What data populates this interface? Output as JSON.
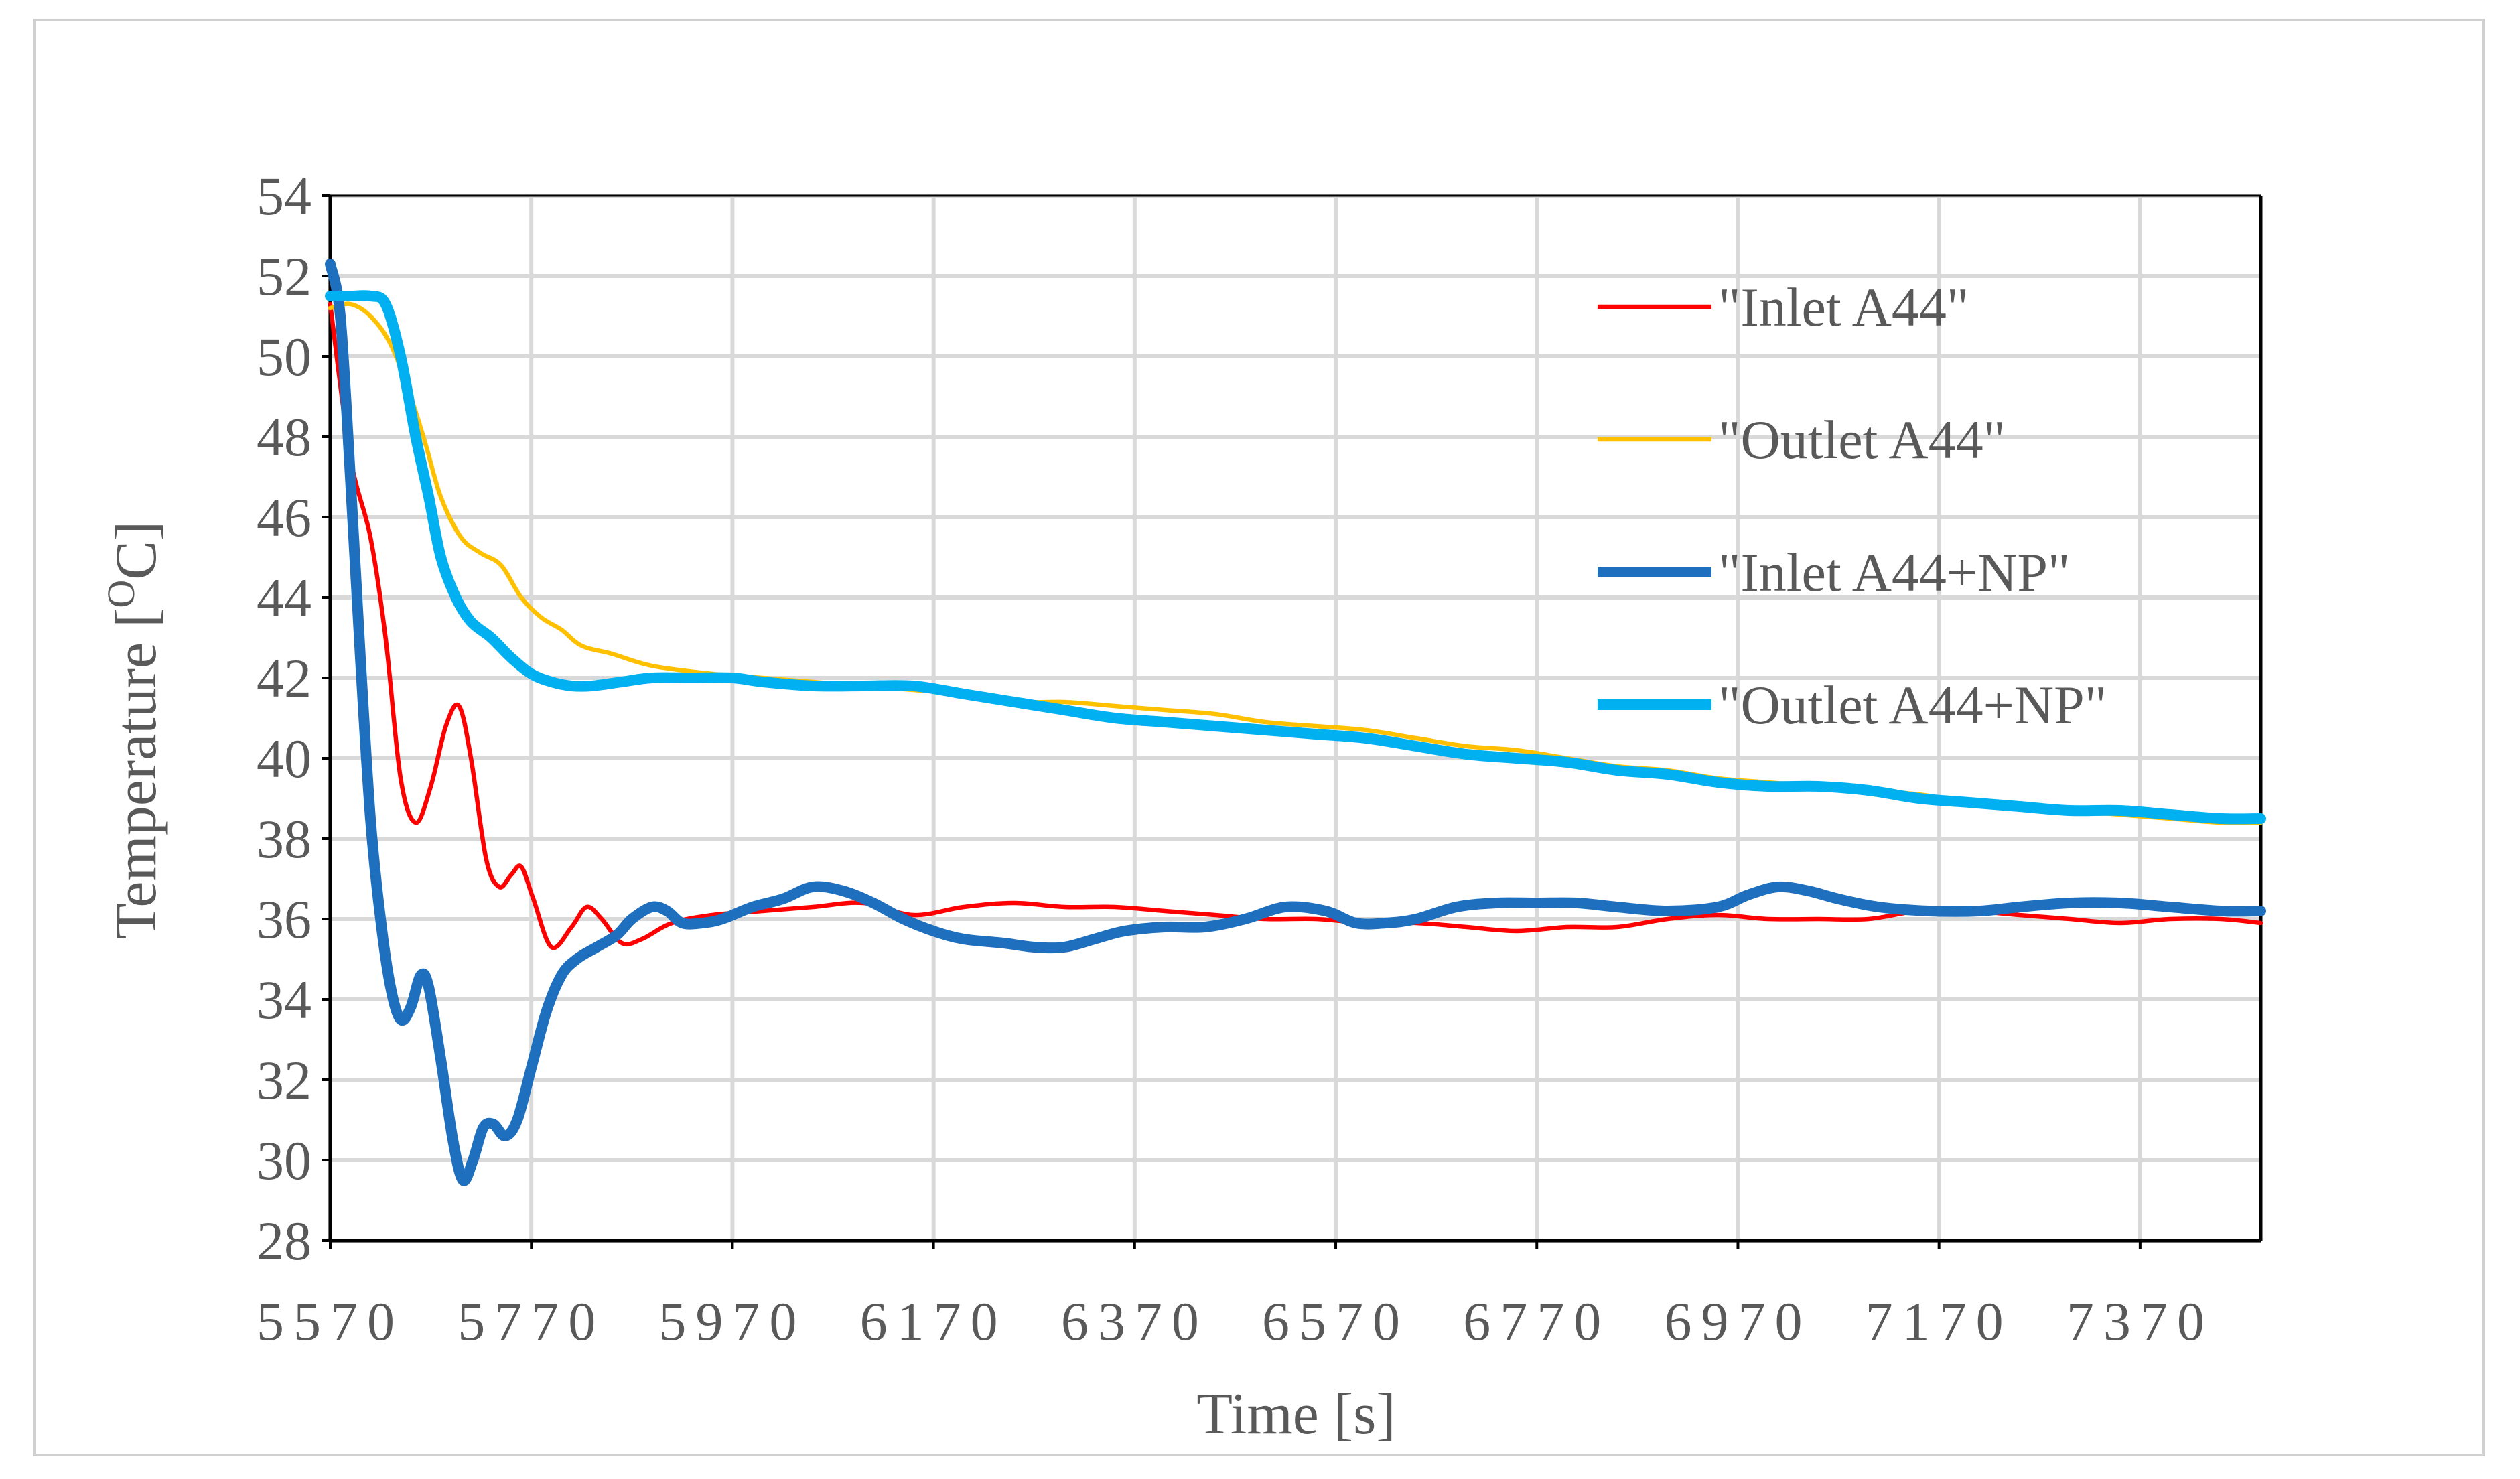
{
  "chart_data": {
    "type": "line",
    "title": "",
    "xlabel": "Time [s]",
    "ylabel_text": "Temperature [",
    "ylabel_sup": "O",
    "ylabel_end": "C]",
    "xlim": [
      5570,
      7490
    ],
    "ylim": [
      28,
      54
    ],
    "xticks": [
      5570,
      5770,
      5970,
      6170,
      6370,
      6570,
      6770,
      6970,
      7170,
      7370
    ],
    "yticks": [
      28,
      30,
      32,
      34,
      36,
      38,
      40,
      42,
      44,
      46,
      48,
      50,
      52,
      54
    ],
    "grid": true,
    "legend_position": "top-right",
    "series": [
      {
        "name": "\"Inlet A44\"",
        "color": "#ff0000",
        "width": "thin",
        "points": [
          [
            5570,
            51.3
          ],
          [
            5590,
            47.5
          ],
          [
            5610,
            45.5
          ],
          [
            5625,
            43.0
          ],
          [
            5640,
            39.5
          ],
          [
            5655,
            38.4
          ],
          [
            5670,
            39.3
          ],
          [
            5685,
            40.8
          ],
          [
            5698,
            41.3
          ],
          [
            5710,
            40.0
          ],
          [
            5725,
            37.5
          ],
          [
            5738,
            36.8
          ],
          [
            5750,
            37.1
          ],
          [
            5760,
            37.3
          ],
          [
            5772,
            36.5
          ],
          [
            5790,
            35.3
          ],
          [
            5810,
            35.8
          ],
          [
            5825,
            36.3
          ],
          [
            5840,
            36.0
          ],
          [
            5860,
            35.4
          ],
          [
            5880,
            35.5
          ],
          [
            5910,
            35.9
          ],
          [
            5950,
            36.1
          ],
          [
            6000,
            36.2
          ],
          [
            6050,
            36.3
          ],
          [
            6100,
            36.4
          ],
          [
            6150,
            36.1
          ],
          [
            6200,
            36.3
          ],
          [
            6250,
            36.4
          ],
          [
            6300,
            36.3
          ],
          [
            6350,
            36.3
          ],
          [
            6400,
            36.2
          ],
          [
            6450,
            36.1
          ],
          [
            6500,
            36.0
          ],
          [
            6550,
            36.0
          ],
          [
            6600,
            35.9
          ],
          [
            6650,
            35.9
          ],
          [
            6700,
            35.8
          ],
          [
            6750,
            35.7
          ],
          [
            6800,
            35.8
          ],
          [
            6850,
            35.8
          ],
          [
            6900,
            36.0
          ],
          [
            6950,
            36.1
          ],
          [
            7000,
            36.0
          ],
          [
            7050,
            36.0
          ],
          [
            7100,
            36.0
          ],
          [
            7150,
            36.2
          ],
          [
            7200,
            36.2
          ],
          [
            7250,
            36.1
          ],
          [
            7300,
            36.0
          ],
          [
            7350,
            35.9
          ],
          [
            7400,
            36.0
          ],
          [
            7450,
            36.0
          ],
          [
            7490,
            35.9
          ]
        ]
      },
      {
        "name": "\"Outlet A44\"",
        "color": "#ffc000",
        "width": "thin",
        "points": [
          [
            5570,
            51.2
          ],
          [
            5590,
            51.3
          ],
          [
            5610,
            51.0
          ],
          [
            5630,
            50.3
          ],
          [
            5650,
            49.0
          ],
          [
            5665,
            47.8
          ],
          [
            5680,
            46.5
          ],
          [
            5700,
            45.5
          ],
          [
            5720,
            45.1
          ],
          [
            5740,
            44.8
          ],
          [
            5760,
            44.0
          ],
          [
            5780,
            43.5
          ],
          [
            5800,
            43.2
          ],
          [
            5820,
            42.8
          ],
          [
            5850,
            42.6
          ],
          [
            5890,
            42.3
          ],
          [
            5950,
            42.1
          ],
          [
            6000,
            42.0
          ],
          [
            6050,
            41.9
          ],
          [
            6100,
            41.8
          ],
          [
            6150,
            41.7
          ],
          [
            6200,
            41.6
          ],
          [
            6250,
            41.4
          ],
          [
            6300,
            41.4
          ],
          [
            6350,
            41.3
          ],
          [
            6400,
            41.2
          ],
          [
            6450,
            41.1
          ],
          [
            6500,
            40.9
          ],
          [
            6550,
            40.8
          ],
          [
            6600,
            40.7
          ],
          [
            6650,
            40.5
          ],
          [
            6700,
            40.3
          ],
          [
            6750,
            40.2
          ],
          [
            6800,
            40.0
          ],
          [
            6850,
            39.8
          ],
          [
            6900,
            39.7
          ],
          [
            6950,
            39.5
          ],
          [
            7000,
            39.4
          ],
          [
            7050,
            39.3
          ],
          [
            7100,
            39.2
          ],
          [
            7150,
            39.1
          ],
          [
            7200,
            38.9
          ],
          [
            7250,
            38.8
          ],
          [
            7300,
            38.7
          ],
          [
            7350,
            38.6
          ],
          [
            7400,
            38.5
          ],
          [
            7450,
            38.4
          ],
          [
            7490,
            38.4
          ]
        ]
      },
      {
        "name": "\"Inlet A44+NP\"",
        "color": "#1f6fbf",
        "width": "thick",
        "points": [
          [
            5570,
            52.3
          ],
          [
            5580,
            51.0
          ],
          [
            5590,
            47.0
          ],
          [
            5600,
            42.5
          ],
          [
            5610,
            38.5
          ],
          [
            5620,
            36.0
          ],
          [
            5630,
            34.3
          ],
          [
            5640,
            33.5
          ],
          [
            5650,
            33.8
          ],
          [
            5660,
            34.6
          ],
          [
            5668,
            34.3
          ],
          [
            5680,
            32.5
          ],
          [
            5692,
            30.5
          ],
          [
            5702,
            29.5
          ],
          [
            5712,
            30.0
          ],
          [
            5722,
            30.8
          ],
          [
            5732,
            30.9
          ],
          [
            5744,
            30.6
          ],
          [
            5756,
            31.0
          ],
          [
            5770,
            32.3
          ],
          [
            5785,
            33.7
          ],
          [
            5800,
            34.6
          ],
          [
            5815,
            35.0
          ],
          [
            5835,
            35.3
          ],
          [
            5855,
            35.6
          ],
          [
            5870,
            36.0
          ],
          [
            5890,
            36.3
          ],
          [
            5905,
            36.2
          ],
          [
            5920,
            35.9
          ],
          [
            5940,
            35.9
          ],
          [
            5960,
            36.0
          ],
          [
            5990,
            36.3
          ],
          [
            6020,
            36.5
          ],
          [
            6050,
            36.8
          ],
          [
            6080,
            36.7
          ],
          [
            6110,
            36.4
          ],
          [
            6140,
            36.0
          ],
          [
            6170,
            35.7
          ],
          [
            6200,
            35.5
          ],
          [
            6240,
            35.4
          ],
          [
            6270,
            35.3
          ],
          [
            6300,
            35.3
          ],
          [
            6330,
            35.5
          ],
          [
            6360,
            35.7
          ],
          [
            6400,
            35.8
          ],
          [
            6440,
            35.8
          ],
          [
            6480,
            36.0
          ],
          [
            6520,
            36.3
          ],
          [
            6560,
            36.2
          ],
          [
            6590,
            35.9
          ],
          [
            6620,
            35.9
          ],
          [
            6650,
            36.0
          ],
          [
            6690,
            36.3
          ],
          [
            6730,
            36.4
          ],
          [
            6770,
            36.4
          ],
          [
            6810,
            36.4
          ],
          [
            6850,
            36.3
          ],
          [
            6900,
            36.2
          ],
          [
            6950,
            36.3
          ],
          [
            6980,
            36.6
          ],
          [
            7010,
            36.8
          ],
          [
            7040,
            36.7
          ],
          [
            7070,
            36.5
          ],
          [
            7110,
            36.3
          ],
          [
            7160,
            36.2
          ],
          [
            7210,
            36.2
          ],
          [
            7250,
            36.3
          ],
          [
            7300,
            36.4
          ],
          [
            7350,
            36.4
          ],
          [
            7400,
            36.3
          ],
          [
            7450,
            36.2
          ],
          [
            7490,
            36.2
          ]
        ]
      },
      {
        "name": "\"Outlet A44+NP\"",
        "color": "#00b0f0",
        "width": "thick",
        "points": [
          [
            5570,
            51.5
          ],
          [
            5590,
            51.5
          ],
          [
            5610,
            51.5
          ],
          [
            5625,
            51.3
          ],
          [
            5640,
            50.0
          ],
          [
            5655,
            48.0
          ],
          [
            5668,
            46.5
          ],
          [
            5680,
            45.0
          ],
          [
            5695,
            44.0
          ],
          [
            5710,
            43.4
          ],
          [
            5730,
            43.0
          ],
          [
            5750,
            42.5
          ],
          [
            5770,
            42.1
          ],
          [
            5790,
            41.9
          ],
          [
            5810,
            41.8
          ],
          [
            5830,
            41.8
          ],
          [
            5860,
            41.9
          ],
          [
            5890,
            42.0
          ],
          [
            5930,
            42.0
          ],
          [
            5970,
            42.0
          ],
          [
            6000,
            41.9
          ],
          [
            6050,
            41.8
          ],
          [
            6100,
            41.8
          ],
          [
            6150,
            41.8
          ],
          [
            6200,
            41.6
          ],
          [
            6250,
            41.4
          ],
          [
            6300,
            41.2
          ],
          [
            6350,
            41.0
          ],
          [
            6400,
            40.9
          ],
          [
            6450,
            40.8
          ],
          [
            6500,
            40.7
          ],
          [
            6550,
            40.6
          ],
          [
            6600,
            40.5
          ],
          [
            6650,
            40.3
          ],
          [
            6700,
            40.1
          ],
          [
            6750,
            40.0
          ],
          [
            6800,
            39.9
          ],
          [
            6850,
            39.7
          ],
          [
            6900,
            39.6
          ],
          [
            6950,
            39.4
          ],
          [
            7000,
            39.3
          ],
          [
            7050,
            39.3
          ],
          [
            7100,
            39.2
          ],
          [
            7150,
            39.0
          ],
          [
            7200,
            38.9
          ],
          [
            7250,
            38.8
          ],
          [
            7300,
            38.7
          ],
          [
            7350,
            38.7
          ],
          [
            7400,
            38.6
          ],
          [
            7450,
            38.5
          ],
          [
            7490,
            38.5
          ]
        ]
      }
    ]
  }
}
